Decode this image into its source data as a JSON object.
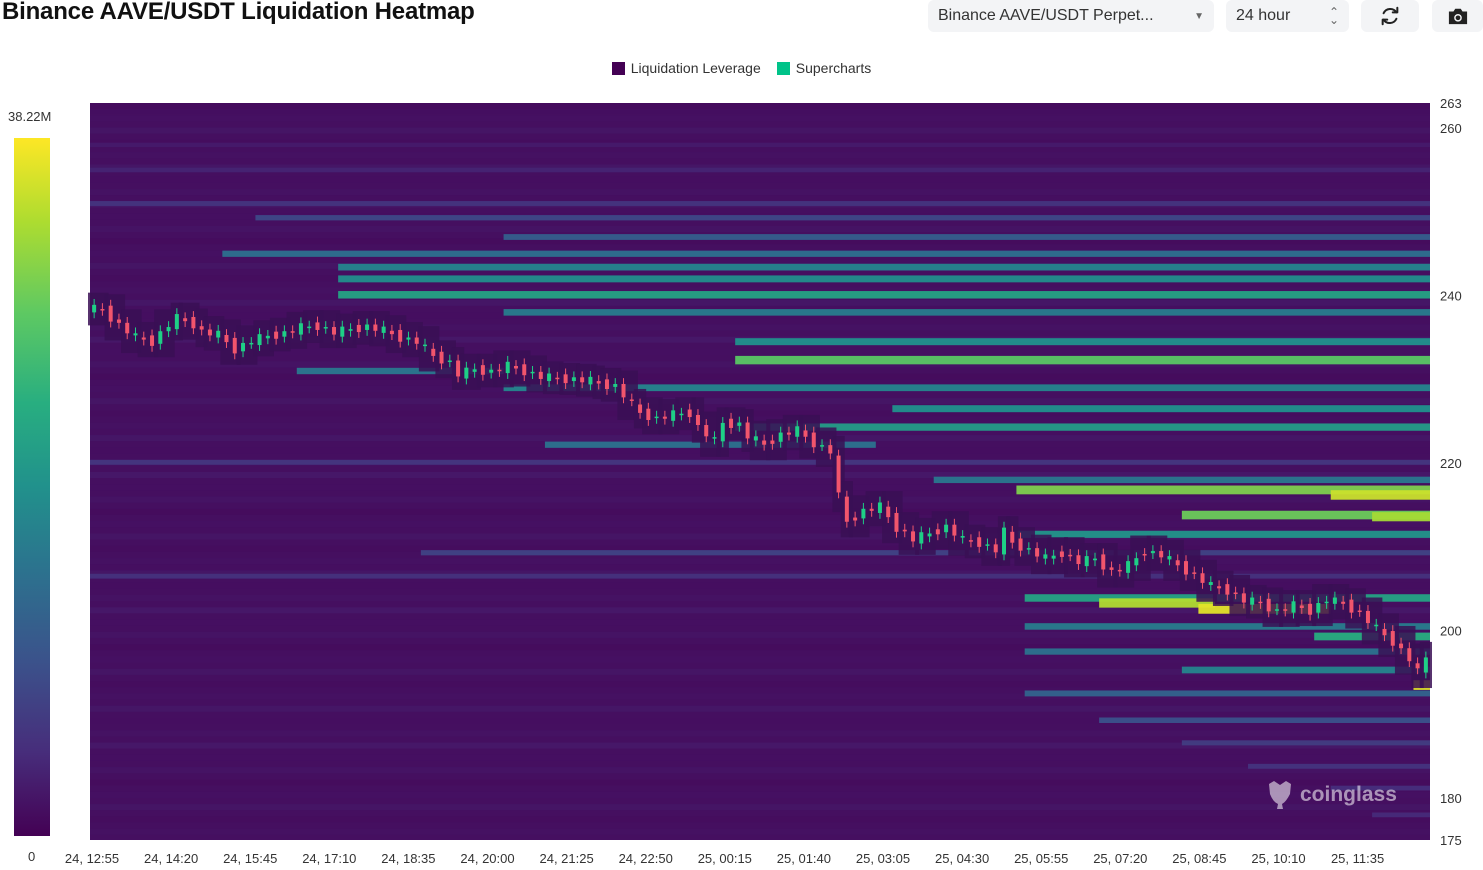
{
  "header": {
    "title": "Binance AAVE/USDT Liquidation Heatmap",
    "market_select": "Binance AAVE/USDT Perpet...",
    "range_select": "24 hour",
    "refresh_icon": "refresh-icon",
    "camera_icon": "camera-icon"
  },
  "legend": {
    "items": [
      {
        "label": "Liquidation Leverage",
        "color": "#440154"
      },
      {
        "label": "Supercharts",
        "color": "#00c389"
      }
    ]
  },
  "colorbar": {
    "max_label": "38.22M",
    "min_label": "0"
  },
  "watermark": "coinglass",
  "chart_data": {
    "type": "heatmap",
    "title": "Binance AAVE/USDT Liquidation Heatmap",
    "ylim": [
      175,
      263
    ],
    "y_ticks": [
      263,
      260,
      240,
      220,
      200,
      180,
      175
    ],
    "x_ticks": [
      "24, 12:55",
      "24, 14:20",
      "24, 15:45",
      "24, 17:10",
      "24, 18:35",
      "24, 20:00",
      "24, 21:25",
      "24, 22:50",
      "25, 00:15",
      "25, 01:40",
      "25, 03:05",
      "25, 04:30",
      "25, 05:55",
      "25, 07:20",
      "25, 08:45",
      "25, 10:10",
      "25, 11:35"
    ],
    "color_scale": {
      "min": 0,
      "max": 38220000,
      "min_label": "0",
      "max_label": "38.22M"
    },
    "price_path": [
      [
        0,
        238.5
      ],
      [
        2,
        238.3
      ],
      [
        4,
        236.5
      ],
      [
        6,
        235.0
      ],
      [
        8,
        234.5
      ],
      [
        10,
        236.5
      ],
      [
        11,
        237.3
      ],
      [
        13,
        236.6
      ],
      [
        14,
        235.7
      ],
      [
        16,
        235.3
      ],
      [
        18,
        233.6
      ],
      [
        20,
        234.6
      ],
      [
        22,
        235.2
      ],
      [
        24,
        235.5
      ],
      [
        26,
        236.2
      ],
      [
        28,
        236.4
      ],
      [
        30,
        235.6
      ],
      [
        32,
        236.0
      ],
      [
        34,
        236.3
      ],
      [
        36,
        235.8
      ],
      [
        38,
        235.0
      ],
      [
        40,
        234.5
      ],
      [
        42,
        232.8
      ],
      [
        44,
        232.0
      ],
      [
        45,
        230.6
      ],
      [
        47,
        231.2
      ],
      [
        49,
        230.9
      ],
      [
        51,
        231.6
      ],
      [
        53,
        231.0
      ],
      [
        55,
        230.3
      ],
      [
        57,
        230.1
      ],
      [
        59,
        230.0
      ],
      [
        61,
        229.8
      ],
      [
        62,
        229.5
      ],
      [
        64,
        229.2
      ],
      [
        66,
        227.0
      ],
      [
        67,
        226.0
      ],
      [
        69,
        225.3
      ],
      [
        71,
        225.8
      ],
      [
        73,
        226.0
      ],
      [
        74,
        224.3
      ],
      [
        76,
        222.6
      ],
      [
        77,
        224.8
      ],
      [
        79,
        224.6
      ],
      [
        80,
        223.2
      ],
      [
        82,
        222.2
      ],
      [
        84,
        223.4
      ],
      [
        86,
        223.9
      ],
      [
        88,
        222.4
      ],
      [
        90,
        221.4
      ],
      [
        91,
        216.0
      ],
      [
        92,
        213.0
      ],
      [
        94,
        214.3
      ],
      [
        96,
        214.8
      ],
      [
        98,
        212.3
      ],
      [
        100,
        210.9
      ],
      [
        102,
        211.6
      ],
      [
        104,
        212.4
      ],
      [
        106,
        210.8
      ],
      [
        108,
        210.5
      ],
      [
        110,
        209.6
      ],
      [
        111,
        211.8
      ],
      [
        112,
        210.5
      ],
      [
        114,
        209.6
      ],
      [
        116,
        208.6
      ],
      [
        118,
        209.3
      ],
      [
        120,
        208.2
      ],
      [
        122,
        208.6
      ],
      [
        124,
        207.0
      ],
      [
        126,
        207.8
      ],
      [
        128,
        209.5
      ],
      [
        130,
        209.0
      ],
      [
        132,
        207.8
      ],
      [
        134,
        206.6
      ],
      [
        136,
        205.3
      ],
      [
        138,
        204.8
      ],
      [
        140,
        203.6
      ],
      [
        142,
        203.3
      ],
      [
        144,
        202.3
      ],
      [
        146,
        203.0
      ],
      [
        148,
        202.4
      ],
      [
        150,
        203.7
      ],
      [
        152,
        203.2
      ],
      [
        154,
        202.1
      ],
      [
        156,
        200.2
      ],
      [
        158,
        198.7
      ],
      [
        160,
        196.6
      ],
      [
        161,
        195.0
      ],
      [
        162,
        196.8
      ]
    ],
    "bands": [
      {
        "price": 262,
        "x_start": 0,
        "x_end": 162,
        "intensity": 0.04
      },
      {
        "price": 258,
        "x_start": 0,
        "x_end": 162,
        "intensity": 0.07
      },
      {
        "price": 255,
        "x_start": 0,
        "x_end": 162,
        "intensity": 0.1
      },
      {
        "price": 251,
        "x_start": 0,
        "x_end": 162,
        "intensity": 0.15
      },
      {
        "price": 249.3,
        "x_start": 20,
        "x_end": 162,
        "intensity": 0.22
      },
      {
        "price": 247,
        "x_start": 50,
        "x_end": 162,
        "intensity": 0.3
      },
      {
        "price": 245,
        "x_start": 16,
        "x_end": 162,
        "intensity": 0.37
      },
      {
        "price": 243.4,
        "x_start": 30,
        "x_end": 162,
        "intensity": 0.45
      },
      {
        "price": 242,
        "x_start": 30,
        "x_end": 162,
        "intensity": 0.49
      },
      {
        "price": 240.1,
        "x_start": 30,
        "x_end": 162,
        "intensity": 0.58
      },
      {
        "price": 238,
        "x_start": 50,
        "x_end": 162,
        "intensity": 0.42
      },
      {
        "price": 234.5,
        "x_start": 78,
        "x_end": 162,
        "intensity": 0.5
      },
      {
        "price": 232.3,
        "x_start": 78,
        "x_end": 162,
        "intensity": 0.74
      },
      {
        "price": 231,
        "x_start": 25,
        "x_end": 50,
        "intensity": 0.4
      },
      {
        "price": 229,
        "x_start": 50,
        "x_end": 162,
        "intensity": 0.46
      },
      {
        "price": 226.5,
        "x_start": 97,
        "x_end": 162,
        "intensity": 0.5
      },
      {
        "price": 224.3,
        "x_start": 78,
        "x_end": 162,
        "intensity": 0.55
      },
      {
        "price": 222.2,
        "x_start": 55,
        "x_end": 95,
        "intensity": 0.38
      },
      {
        "price": 220.1,
        "x_start": 0,
        "x_end": 162,
        "intensity": 0.16
      },
      {
        "price": 218,
        "x_start": 102,
        "x_end": 162,
        "intensity": 0.4
      },
      {
        "price": 216.8,
        "x_start": 112,
        "x_end": 162,
        "intensity": 0.8
      },
      {
        "price": 216.2,
        "x_start": 150,
        "x_end": 162,
        "intensity": 0.92
      },
      {
        "price": 213.8,
        "x_start": 132,
        "x_end": 162,
        "intensity": 0.77
      },
      {
        "price": 213.6,
        "x_start": 155,
        "x_end": 162,
        "intensity": 0.86
      },
      {
        "price": 211.5,
        "x_start": 112,
        "x_end": 162,
        "intensity": 0.52
      },
      {
        "price": 209.3,
        "x_start": 40,
        "x_end": 162,
        "intensity": 0.2
      },
      {
        "price": 206.5,
        "x_start": 0,
        "x_end": 162,
        "intensity": 0.14
      },
      {
        "price": 203.9,
        "x_start": 113,
        "x_end": 162,
        "intensity": 0.58
      },
      {
        "price": 203.3,
        "x_start": 122,
        "x_end": 136,
        "intensity": 0.88
      },
      {
        "price": 202.6,
        "x_start": 134,
        "x_end": 150,
        "intensity": 0.96
      },
      {
        "price": 200.5,
        "x_start": 113,
        "x_end": 162,
        "intensity": 0.42
      },
      {
        "price": 199.3,
        "x_start": 148,
        "x_end": 162,
        "intensity": 0.62
      },
      {
        "price": 197.5,
        "x_start": 113,
        "x_end": 162,
        "intensity": 0.38
      },
      {
        "price": 195.3,
        "x_start": 132,
        "x_end": 162,
        "intensity": 0.45
      },
      {
        "price": 193.5,
        "x_start": 160,
        "x_end": 162,
        "intensity": 0.95
      },
      {
        "price": 192.5,
        "x_start": 113,
        "x_end": 162,
        "intensity": 0.32
      },
      {
        "price": 189.3,
        "x_start": 122,
        "x_end": 162,
        "intensity": 0.25
      },
      {
        "price": 186.6,
        "x_start": 132,
        "x_end": 162,
        "intensity": 0.18
      },
      {
        "price": 183.8,
        "x_start": 140,
        "x_end": 162,
        "intensity": 0.15
      },
      {
        "price": 181.2,
        "x_start": 150,
        "x_end": 162,
        "intensity": 0.13
      },
      {
        "price": 178,
        "x_start": 155,
        "x_end": 162,
        "intensity": 0.12
      }
    ]
  }
}
